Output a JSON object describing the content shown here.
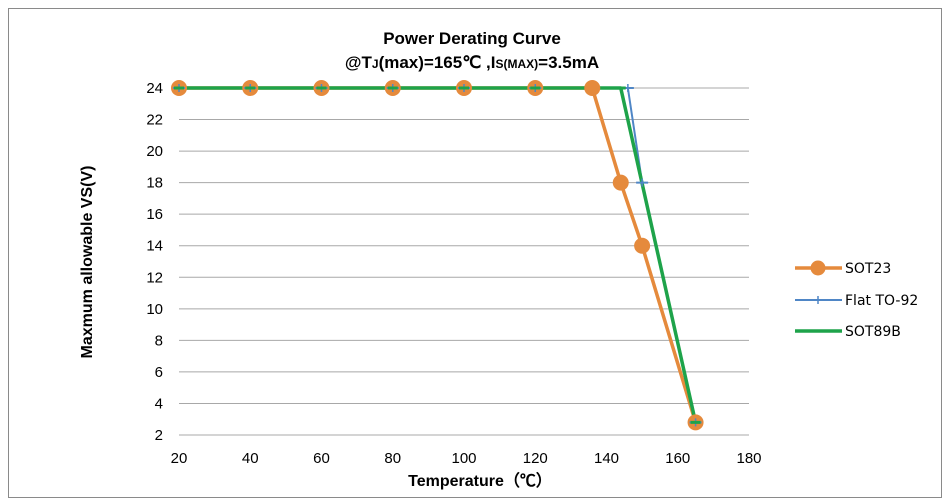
{
  "chart_data": {
    "type": "line",
    "title": "Power Derating Curve",
    "subtitle": "@TJ(max)=165℃ ,IS(MAX)=3.5mA",
    "subtitle_parts": {
      "p1": "@T",
      "p2": "J",
      "p3": "(max)=165℃ ,I",
      "p4": "S(MAX)",
      "p5": "=3.5mA"
    },
    "xlabel": "Temperature（℃）",
    "ylabel": "Maxmum allowable VS(V)",
    "xlim": [
      20,
      180
    ],
    "ylim": [
      2,
      24
    ],
    "xticks": [
      20,
      40,
      60,
      80,
      100,
      120,
      140,
      160,
      180
    ],
    "yticks": [
      2,
      4,
      6,
      8,
      10,
      12,
      14,
      16,
      18,
      20,
      22,
      24
    ],
    "grid": "horizontal",
    "legend_position": "right",
    "series": [
      {
        "name": "SOT23",
        "color": "#e58a3c",
        "marker": "circle",
        "x": [
          20,
          40,
          60,
          80,
          100,
          120,
          136,
          144,
          150,
          165
        ],
        "y": [
          24,
          24,
          24,
          24,
          24,
          24,
          24,
          18,
          14,
          2.8
        ]
      },
      {
        "name": "Flat TO-92",
        "color": "#4f86c6",
        "marker": "plus",
        "x": [
          20,
          40,
          60,
          80,
          100,
          120,
          146,
          150,
          165
        ],
        "y": [
          24,
          24,
          24,
          24,
          24,
          24,
          24,
          18,
          2.8
        ]
      },
      {
        "name": "SOT89B",
        "color": "#1ea34a",
        "marker": "dash",
        "x": [
          20,
          40,
          60,
          80,
          100,
          120,
          144,
          165
        ],
        "y": [
          24,
          24,
          24,
          24,
          24,
          24,
          24,
          2.8
        ]
      }
    ]
  }
}
